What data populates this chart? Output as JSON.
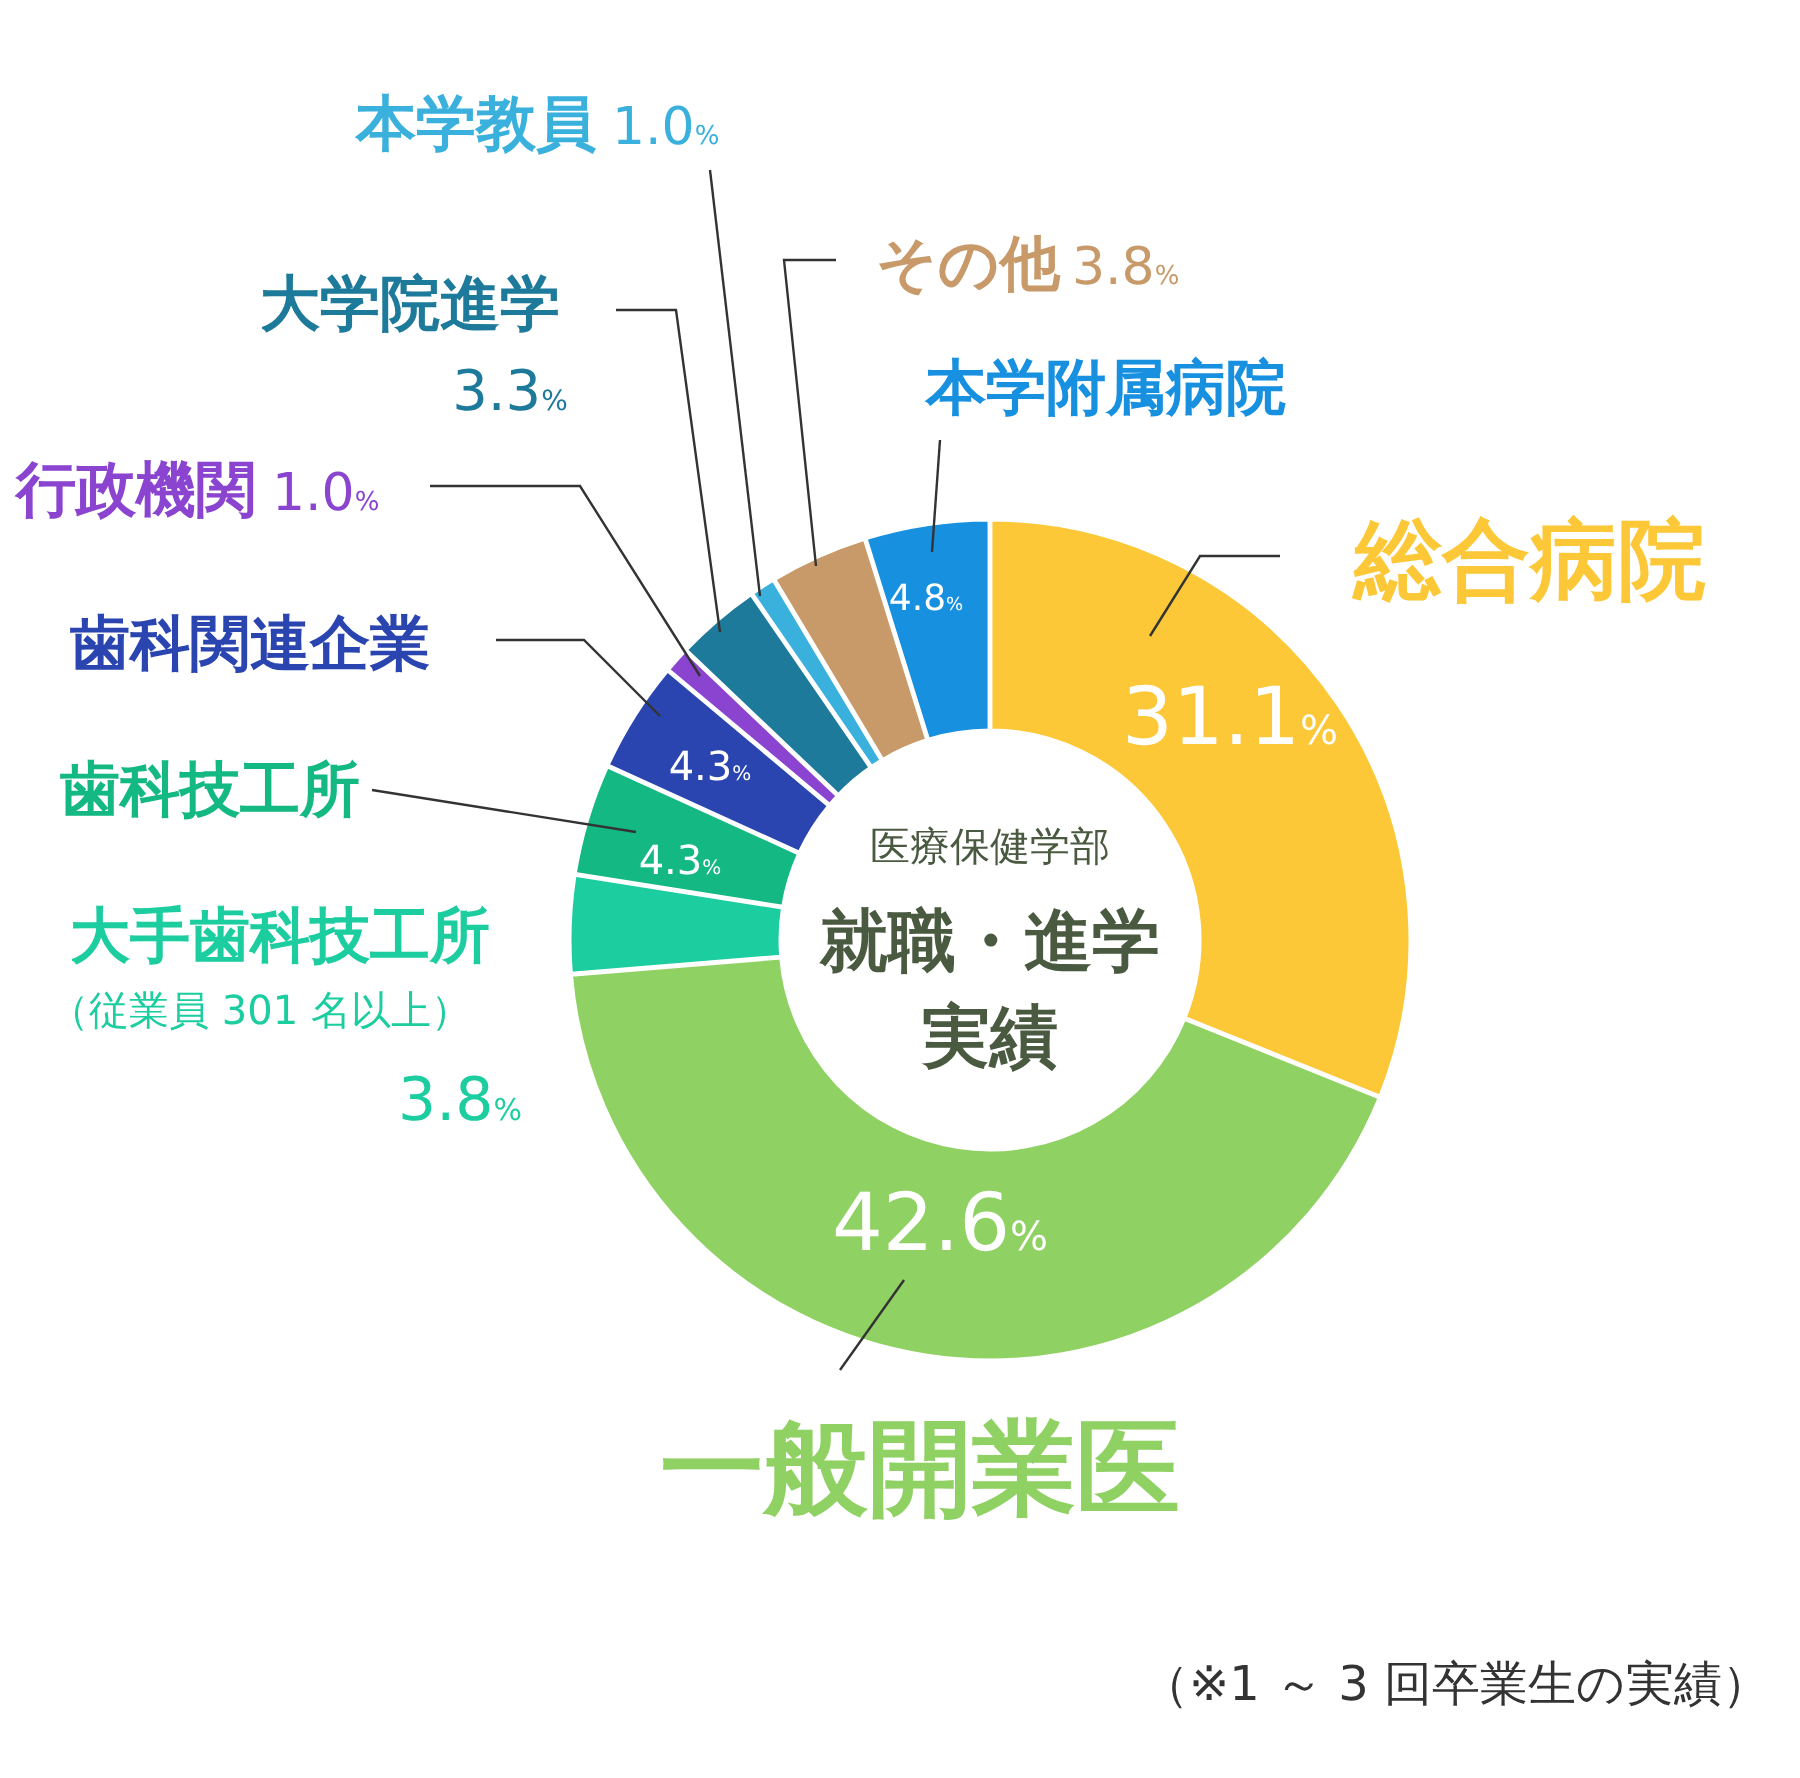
{
  "chart_data": {
    "type": "donut",
    "title": "就職・進学実績",
    "subtitle": "医療保健学部",
    "categories": [
      "総合病院",
      "一般開業医",
      "大手歯科技工所（従業員 301 名以上）",
      "歯科技工所",
      "歯科関連企業",
      "行政機関",
      "大学院進学",
      "本学教員",
      "その他",
      "本学附属病院"
    ],
    "values": [
      31.1,
      42.6,
      3.8,
      4.3,
      4.3,
      1.0,
      3.3,
      1.0,
      3.8,
      4.8
    ],
    "value_labels": [
      "31.1%",
      "42.6%",
      "3.8%",
      "4.3%",
      "4.3%",
      "1.0%",
      "3.3%",
      "1.0%",
      "3.8%",
      "4.8%"
    ],
    "colors": [
      "#fcc838",
      "#8fd163",
      "#1ccda0",
      "#14b882",
      "#2a44b0",
      "#8a44d0",
      "#1e7a9a",
      "#3ab0dc",
      "#c89a6a",
      "#1890e0"
    ],
    "annotations": [
      "（※1 ～ 3 回卒業生の実績）"
    ]
  }
}
